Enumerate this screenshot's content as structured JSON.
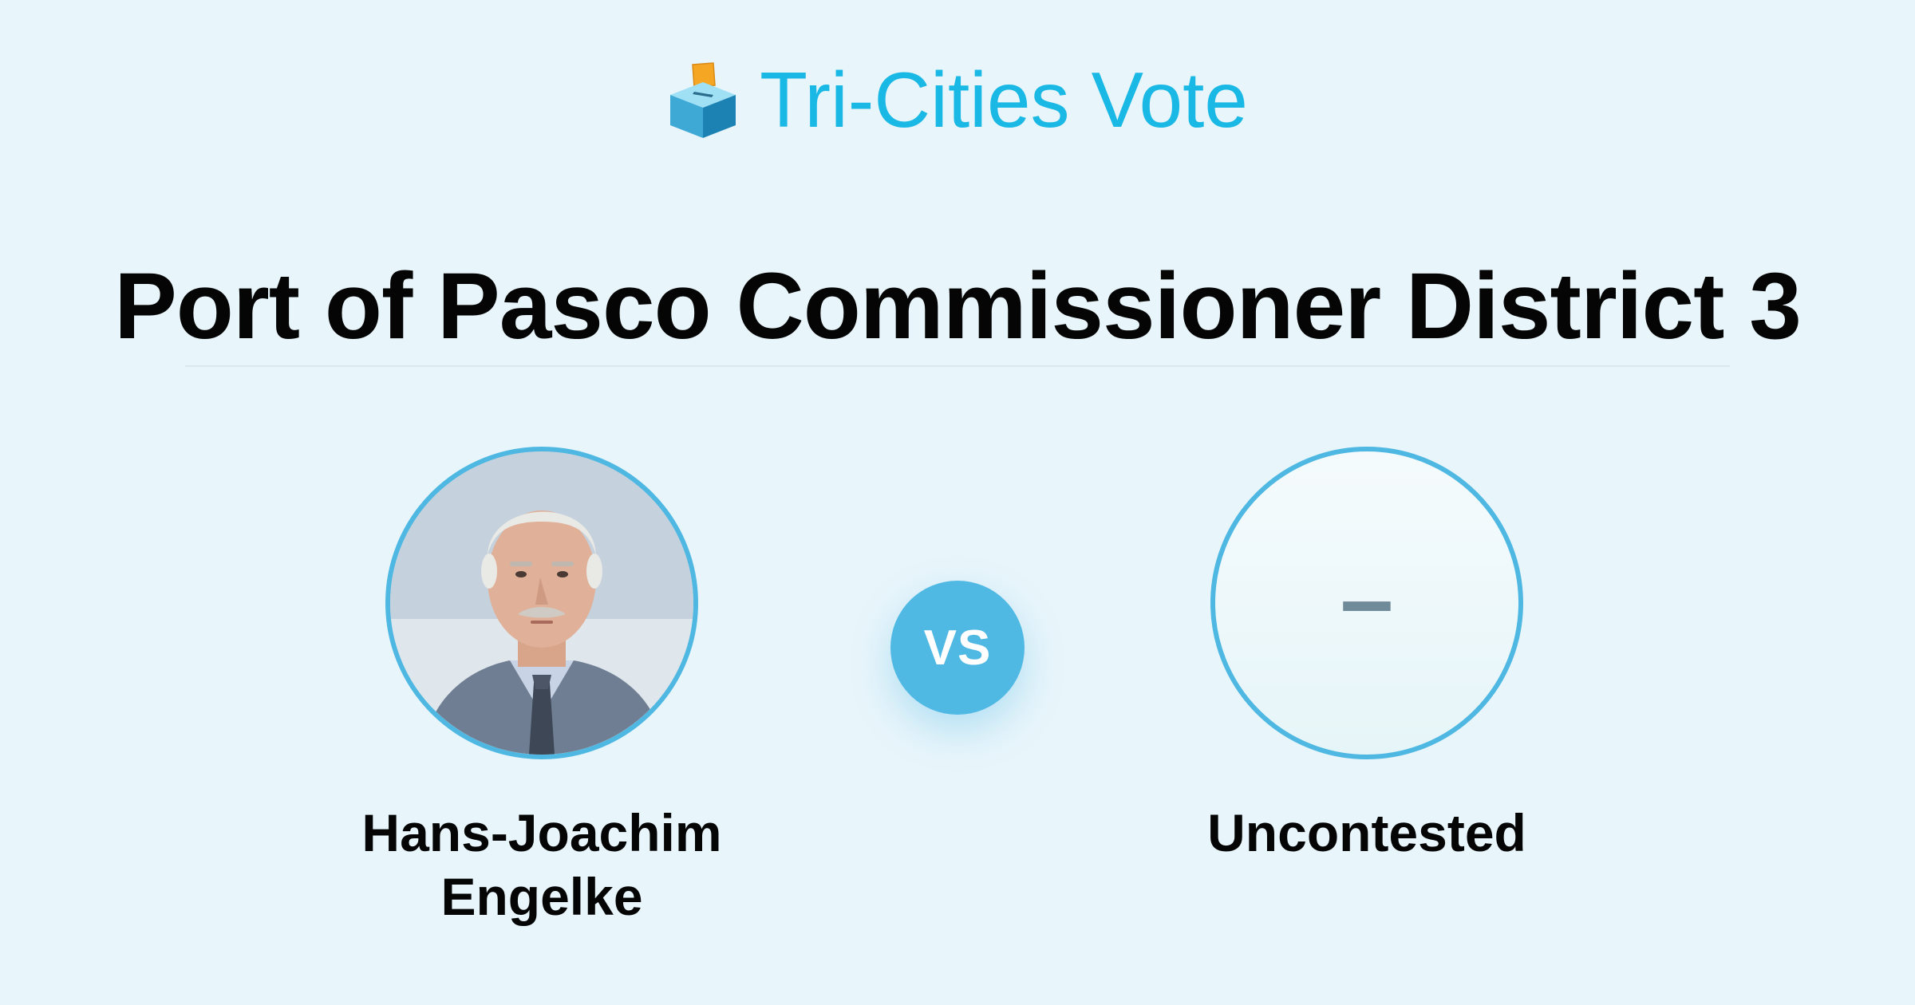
{
  "brand": {
    "name": "Tri-Cities Vote",
    "icon": "ballot-box-icon",
    "color": "#1ab8e4"
  },
  "race": {
    "title": "Port of Pasco Commissioner District 3"
  },
  "versus": {
    "label": "VS",
    "color": "#4fb9e4"
  },
  "candidates": [
    {
      "name_line1": "Hans-Joachim",
      "name_line2": "Engelke",
      "photo": "candidate-photo"
    },
    {
      "name": "Uncontested",
      "placeholder": "–"
    }
  ],
  "colors": {
    "background": "#e8f5fb",
    "ring": "#4eb8e2",
    "text": "#050505"
  }
}
